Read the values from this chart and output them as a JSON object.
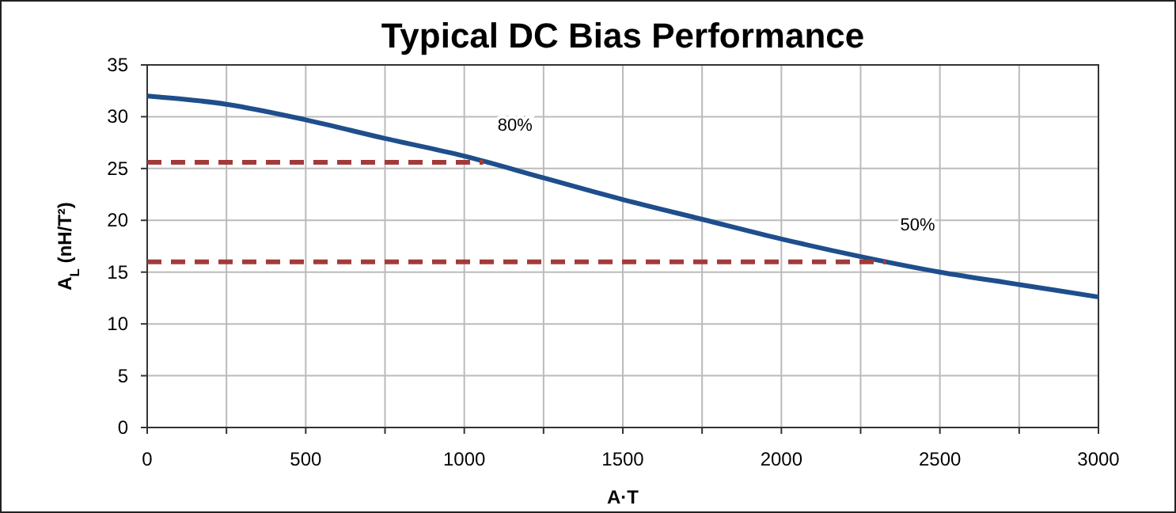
{
  "chart_data": {
    "type": "line",
    "title": "Typical DC Bias Performance",
    "xlabel": "A·T",
    "ylabel": "A$_{L}$ (nH/T²)",
    "series": [
      {
        "color": "#1f4e8c",
        "x": [
          0,
          250,
          500,
          750,
          1000,
          1250,
          1500,
          1750,
          2000,
          2250,
          2500,
          2750,
          3000
        ],
        "values": [
          32,
          31.2,
          29.7,
          27.9,
          26.2,
          24.1,
          22.0,
          20.1,
          18.2,
          16.5,
          15.0,
          13.8,
          12.6
        ]
      },
      {
        "color": "#a33a3a",
        "line_style": "dashed",
        "x": [
          0,
          1060
        ],
        "values": [
          25.6,
          25.6
        ]
      },
      {
        "color": "#a33a3a",
        "line_style": "dashed",
        "x": [
          0,
          2330
        ],
        "values": [
          16,
          16
        ]
      }
    ],
    "annotations": [
      {
        "text": "80%",
        "x": 1060,
        "y": 25.6
      },
      {
        "text": "50%",
        "x": 2330,
        "y": 16
      }
    ],
    "xlim": [
      0,
      3000
    ],
    "xticks": [
      0,
      {
        "value": 250,
        "label": null
      },
      500,
      {
        "value": 750,
        "label": null
      },
      1000,
      {
        "value": 1250,
        "label": null
      },
      1500,
      {
        "value": 1750,
        "label": null
      },
      2000,
      {
        "value": 2250,
        "label": null
      },
      2500,
      {
        "value": 2750,
        "label": null
      },
      3000
    ],
    "ylim": [
      0,
      35
    ],
    "yticks": [
      0,
      5,
      10,
      15,
      20,
      25,
      30,
      35
    ],
    "grid": true,
    "marker": "none",
    "line_style": "solid"
  }
}
